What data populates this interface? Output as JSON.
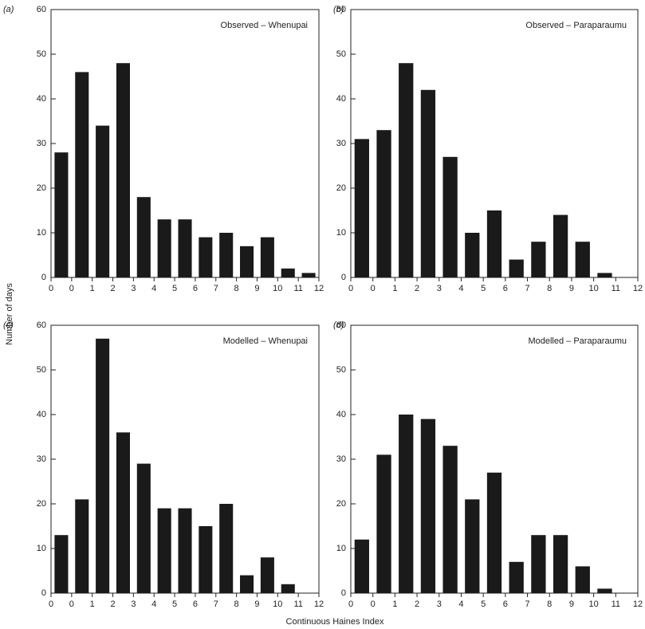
{
  "y_label": "Number of days",
  "x_label": "Continuous Haines Index",
  "chart_data": [
    {
      "type": "histogram",
      "panel": "(a)",
      "title": "Observed – Whenupai",
      "color": "#1a1a1a",
      "bin_labels": [
        "0",
        "0",
        "1",
        "2",
        "3",
        "4",
        "5",
        "6",
        "7",
        "8",
        "9",
        "10",
        "11",
        "12"
      ],
      "values": [
        28,
        46,
        34,
        48,
        18,
        13,
        13,
        9,
        10,
        7,
        9,
        2,
        1
      ],
      "ylim": [
        0,
        60
      ],
      "yticks": [
        0,
        10,
        20,
        30,
        40,
        50,
        60
      ]
    },
    {
      "type": "histogram",
      "panel": "(b)",
      "title": "Observed – Paraparaumu",
      "color": "#1a1a1a",
      "bin_labels": [
        "0",
        "0",
        "1",
        "2",
        "3",
        "4",
        "5",
        "6",
        "7",
        "8",
        "9",
        "10",
        "11",
        "12"
      ],
      "values": [
        31,
        33,
        48,
        42,
        27,
        10,
        15,
        4,
        8,
        14,
        8,
        1
      ],
      "ylim": [
        0,
        60
      ],
      "yticks": [
        0,
        10,
        20,
        30,
        40,
        50,
        60
      ]
    },
    {
      "type": "histogram",
      "panel": "(c)",
      "title": "Modelled – Whenupai",
      "color": "#1a1a1a",
      "bin_labels": [
        "0",
        "0",
        "1",
        "2",
        "3",
        "4",
        "5",
        "6",
        "7",
        "8",
        "9",
        "10",
        "11",
        "12"
      ],
      "values": [
        13,
        21,
        57,
        36,
        29,
        19,
        19,
        15,
        20,
        4,
        8,
        2
      ],
      "ylim": [
        0,
        60
      ],
      "yticks": [
        0,
        10,
        20,
        30,
        40,
        50,
        60
      ]
    },
    {
      "type": "histogram",
      "panel": "(d)",
      "title": "Modelled – Paraparaumu",
      "color": "#1a1a1a",
      "bin_labels": [
        "0",
        "0",
        "1",
        "2",
        "3",
        "4",
        "5",
        "6",
        "7",
        "8",
        "9",
        "10",
        "11",
        "12"
      ],
      "values": [
        12,
        31,
        40,
        39,
        33,
        21,
        27,
        7,
        13,
        13,
        6,
        1
      ],
      "ylim": [
        0,
        60
      ],
      "yticks": [
        0,
        10,
        20,
        30,
        40,
        50,
        60
      ]
    }
  ]
}
